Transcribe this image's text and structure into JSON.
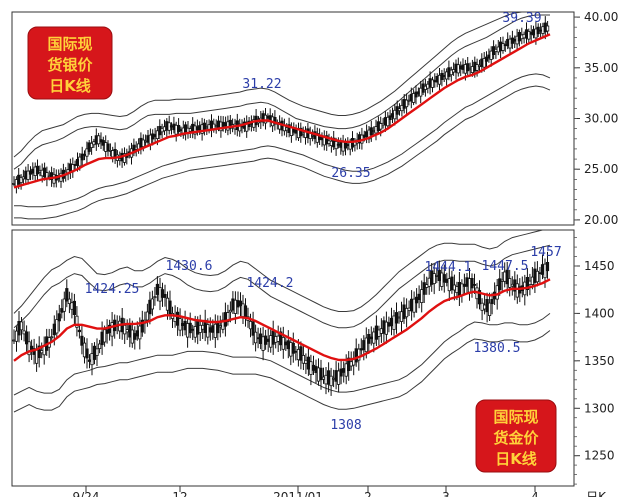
{
  "chart_data": [
    {
      "type": "candlestick",
      "badge": [
        "国际现",
        "货银价",
        "日K线"
      ],
      "y_ticks": [
        20.0,
        25.0,
        30.0,
        35.0,
        40.0
      ],
      "y_tick_labels": [
        "20.00",
        "25.00",
        "30.00",
        "35.00",
        "40.00"
      ],
      "ylim": [
        19.5,
        40.5
      ],
      "annotations": [
        {
          "label": "31.22",
          "value": 31.22
        },
        {
          "label": "26.35",
          "value": 26.35
        },
        {
          "label": "39.39",
          "value": 39.39
        }
      ],
      "series": [
        {
          "name": "",
          "values": [
            23.6,
            24.0,
            24.5,
            24.9,
            24.7,
            24.3,
            24.1,
            24.4,
            25.0,
            25.6,
            26.4,
            27.4,
            28.0,
            27.3,
            26.6,
            26.0,
            26.3,
            26.9,
            27.5,
            27.9,
            28.3,
            28.9,
            29.3,
            29.0,
            28.8,
            28.9,
            29.0,
            29.1,
            29.2,
            29.3,
            29.4,
            29.3,
            29.2,
            29.3,
            29.6,
            29.9,
            30.1,
            29.7,
            29.2,
            28.9,
            28.7,
            28.5,
            28.4,
            28.2,
            27.9,
            27.6,
            27.4,
            27.3,
            27.5,
            27.9,
            28.4,
            28.8,
            29.3,
            29.8,
            30.5,
            31.1,
            31.8,
            32.3,
            32.9,
            33.4,
            33.8,
            34.2,
            34.6,
            35.0,
            35.0,
            34.9,
            35.2,
            35.8,
            36.6,
            37.0,
            37.4,
            37.7,
            38.1,
            38.3,
            38.5,
            38.8,
            39.0
          ]
        },
        {
          "name": "",
          "values": [
            23.2,
            23.4,
            23.6,
            23.8,
            24.0,
            24.1,
            24.2,
            24.4,
            24.7,
            25.0,
            25.4,
            25.7,
            26.0,
            26.1,
            26.1,
            26.2,
            26.4,
            26.7,
            27.0,
            27.3,
            27.6,
            27.9,
            28.2,
            28.3,
            28.5,
            28.6,
            28.7,
            28.8,
            28.9,
            29.0,
            29.1,
            29.2,
            29.3,
            29.5,
            29.7,
            29.8,
            29.8,
            29.6,
            29.4,
            29.2,
            29.0,
            28.8,
            28.6,
            28.4,
            28.2,
            28.0,
            27.8,
            27.7,
            27.7,
            27.8,
            28.0,
            28.3,
            28.6,
            29.0,
            29.5,
            30.0,
            30.5,
            31.0,
            31.5,
            32.0,
            32.5,
            33.0,
            33.4,
            33.8,
            34.1,
            34.3,
            34.6,
            35.0,
            35.4,
            35.8,
            36.2,
            36.6,
            37.0,
            37.4,
            37.7,
            38.0,
            38.3
          ]
        },
        {
          "name": "",
          "values": [
            25.0,
            25.5,
            26.3,
            27.0,
            27.4,
            27.6,
            27.8,
            28.1,
            28.5,
            28.9,
            29.1,
            29.2,
            29.2,
            29.1,
            29.0,
            28.9,
            29.0,
            29.4,
            29.9,
            30.3,
            30.4,
            30.4,
            30.4,
            30.5,
            30.5,
            30.5,
            30.6,
            30.7,
            30.8,
            30.9,
            31.0,
            31.1,
            31.2,
            31.4,
            31.5,
            31.6,
            31.5,
            31.2,
            30.8,
            30.4,
            30.0,
            29.8,
            29.6,
            29.4,
            29.2,
            29.1,
            29.0,
            29.0,
            29.1,
            29.3,
            29.6,
            30.0,
            30.4,
            30.9,
            31.4,
            32.0,
            32.6,
            33.2,
            33.8,
            34.4,
            35.0,
            35.6,
            36.2,
            36.7,
            37.1,
            37.4,
            37.7,
            38.0,
            38.4,
            38.8,
            39.2,
            39.6,
            39.9,
            40.1,
            40.2,
            40.2,
            40.2
          ]
        },
        {
          "name": "",
          "values": [
            26.2,
            26.8,
            27.6,
            28.3,
            28.8,
            29.0,
            29.2,
            29.4,
            29.8,
            30.2,
            30.4,
            30.5,
            30.5,
            30.4,
            30.3,
            30.2,
            30.3,
            30.7,
            31.2,
            31.6,
            31.8,
            31.8,
            31.8,
            31.9,
            31.9,
            31.9,
            32.0,
            32.1,
            32.2,
            32.3,
            32.4,
            32.5,
            32.6,
            32.8,
            32.9,
            33.0,
            32.9,
            32.6,
            32.2,
            31.8,
            31.5,
            31.2,
            31.0,
            30.8,
            30.6,
            30.4,
            30.3,
            30.3,
            30.4,
            30.6,
            30.9,
            31.3,
            31.7,
            32.2,
            32.7,
            33.3,
            33.9,
            34.5,
            35.1,
            35.7,
            36.3,
            36.9,
            37.5,
            38.0,
            38.4,
            38.7,
            39.0,
            39.3,
            39.6,
            39.9,
            40.2,
            40.4,
            40.5,
            40.5,
            40.5,
            40.5,
            40.5
          ]
        },
        {
          "name": "",
          "values": [
            21.4,
            21.4,
            21.3,
            21.3,
            21.3,
            21.4,
            21.5,
            21.7,
            21.9,
            22.1,
            22.4,
            22.8,
            23.1,
            23.3,
            23.4,
            23.6,
            23.8,
            24.1,
            24.4,
            24.7,
            25.0,
            25.3,
            25.5,
            25.7,
            25.9,
            26.1,
            26.2,
            26.3,
            26.4,
            26.5,
            26.6,
            26.7,
            26.8,
            26.9,
            27.0,
            27.2,
            27.3,
            27.2,
            27.0,
            26.8,
            26.6,
            26.4,
            26.1,
            25.8,
            25.5,
            25.3,
            25.1,
            24.9,
            24.8,
            24.8,
            24.9,
            25.1,
            25.4,
            25.7,
            26.1,
            26.5,
            27.0,
            27.5,
            28.0,
            28.5,
            29.0,
            29.6,
            30.1,
            30.6,
            31.1,
            31.4,
            31.8,
            32.2,
            32.6,
            33.0,
            33.4,
            33.8,
            34.1,
            34.3,
            34.4,
            34.3,
            34.0
          ]
        },
        {
          "name": "",
          "values": [
            20.2,
            20.2,
            20.1,
            20.1,
            20.1,
            20.2,
            20.3,
            20.5,
            20.7,
            20.9,
            21.2,
            21.6,
            21.9,
            22.1,
            22.2,
            22.4,
            22.6,
            22.9,
            23.2,
            23.5,
            23.8,
            24.1,
            24.3,
            24.5,
            24.7,
            24.9,
            25.0,
            25.1,
            25.2,
            25.3,
            25.4,
            25.5,
            25.6,
            25.7,
            25.8,
            26.0,
            26.1,
            26.0,
            25.8,
            25.6,
            25.4,
            25.2,
            24.9,
            24.6,
            24.3,
            24.1,
            23.9,
            23.7,
            23.6,
            23.6,
            23.7,
            23.9,
            24.2,
            24.5,
            24.9,
            25.3,
            25.8,
            26.3,
            26.8,
            27.3,
            27.8,
            28.4,
            28.9,
            29.4,
            29.9,
            30.2,
            30.6,
            31.0,
            31.4,
            31.8,
            32.2,
            32.6,
            32.9,
            33.1,
            33.2,
            33.1,
            32.8
          ]
        }
      ]
    },
    {
      "type": "candlestick",
      "badge": [
        "国际现",
        "货金价",
        "日K线"
      ],
      "y_ticks": [
        1250,
        1300,
        1350,
        1400,
        1450
      ],
      "y_tick_labels": [
        "1250",
        "1300",
        "1350",
        "1400",
        "1450"
      ],
      "ylim": [
        1218,
        1488
      ],
      "x_labels": [
        "9/24",
        "12",
        "2011/01",
        "2",
        "3",
        "4"
      ],
      "axis_label": "日K",
      "annotations": [
        {
          "label": "1424.25",
          "value": 1424.25
        },
        {
          "label": "1430.6",
          "value": 1430.6
        },
        {
          "label": "1424.2",
          "value": 1424.2
        },
        {
          "label": "1444.1",
          "value": 1444.1
        },
        {
          "label": "1447.5",
          "value": 1447.5
        },
        {
          "label": "1457",
          "value": 1457
        },
        {
          "label": "1380.5",
          "value": 1380.5
        },
        {
          "label": "1308",
          "value": 1308
        }
      ],
      "series": [
        {
          "name": "",
          "values": [
            1372,
            1388,
            1365,
            1356,
            1362,
            1375,
            1395,
            1418,
            1404,
            1370,
            1350,
            1360,
            1378,
            1385,
            1388,
            1382,
            1375,
            1385,
            1405,
            1424,
            1418,
            1398,
            1390,
            1384,
            1382,
            1386,
            1382,
            1384,
            1392,
            1408,
            1410,
            1395,
            1376,
            1370,
            1372,
            1374,
            1368,
            1362,
            1356,
            1346,
            1340,
            1332,
            1330,
            1334,
            1342,
            1350,
            1362,
            1372,
            1378,
            1384,
            1390,
            1396,
            1402,
            1410,
            1420,
            1434,
            1440,
            1436,
            1430,
            1424,
            1432,
            1430,
            1408,
            1406,
            1424,
            1440,
            1430,
            1424,
            1430,
            1438,
            1445,
            1450
          ]
        },
        {
          "name": "",
          "values": [
            1350,
            1356,
            1360,
            1362,
            1366,
            1370,
            1376,
            1384,
            1388,
            1388,
            1386,
            1384,
            1384,
            1386,
            1388,
            1389,
            1389,
            1390,
            1392,
            1396,
            1398,
            1398,
            1397,
            1395,
            1393,
            1392,
            1391,
            1391,
            1392,
            1394,
            1396,
            1395,
            1392,
            1388,
            1384,
            1380,
            1376,
            1372,
            1368,
            1364,
            1360,
            1356,
            1353,
            1351,
            1351,
            1352,
            1355,
            1359,
            1363,
            1368,
            1373,
            1378,
            1383,
            1389,
            1395,
            1402,
            1408,
            1413,
            1416,
            1418,
            1421,
            1423,
            1421,
            1419,
            1420,
            1424,
            1426,
            1426,
            1427,
            1429,
            1432,
            1436
          ]
        },
        {
          "name": "",
          "values": [
            1385,
            1392,
            1400,
            1410,
            1420,
            1428,
            1432,
            1438,
            1442,
            1440,
            1432,
            1425,
            1424,
            1426,
            1430,
            1432,
            1428,
            1428,
            1432,
            1438,
            1442,
            1440,
            1436,
            1430,
            1426,
            1424,
            1423,
            1424,
            1428,
            1434,
            1438,
            1436,
            1430,
            1424,
            1418,
            1414,
            1410,
            1406,
            1402,
            1398,
            1394,
            1390,
            1387,
            1385,
            1385,
            1386,
            1390,
            1396,
            1402,
            1410,
            1418,
            1426,
            1432,
            1438,
            1444,
            1450,
            1454,
            1456,
            1456,
            1455,
            1455,
            1455,
            1452,
            1450,
            1452,
            1458,
            1462,
            1464,
            1466,
            1468,
            1470,
            1472
          ]
        },
        {
          "name": "",
          "values": [
            1400,
            1408,
            1418,
            1428,
            1438,
            1446,
            1450,
            1456,
            1460,
            1458,
            1450,
            1442,
            1441,
            1443,
            1447,
            1449,
            1445,
            1445,
            1449,
            1455,
            1459,
            1457,
            1453,
            1447,
            1443,
            1441,
            1440,
            1441,
            1445,
            1451,
            1455,
            1453,
            1447,
            1441,
            1435,
            1431,
            1427,
            1423,
            1419,
            1415,
            1411,
            1407,
            1404,
            1402,
            1402,
            1403,
            1407,
            1413,
            1420,
            1428,
            1436,
            1444,
            1450,
            1456,
            1462,
            1468,
            1472,
            1474,
            1474,
            1473,
            1473,
            1473,
            1470,
            1468,
            1470,
            1476,
            1480,
            1482,
            1484,
            1486,
            1488,
            1488
          ]
        },
        {
          "name": "",
          "values": [
            1314,
            1318,
            1322,
            1318,
            1316,
            1316,
            1320,
            1330,
            1336,
            1338,
            1340,
            1343,
            1344,
            1346,
            1348,
            1348,
            1350,
            1352,
            1354,
            1356,
            1356,
            1356,
            1358,
            1360,
            1360,
            1360,
            1359,
            1358,
            1356,
            1354,
            1354,
            1354,
            1354,
            1352,
            1350,
            1346,
            1342,
            1338,
            1334,
            1330,
            1326,
            1322,
            1319,
            1317,
            1317,
            1318,
            1320,
            1322,
            1324,
            1326,
            1328,
            1330,
            1334,
            1340,
            1346,
            1354,
            1362,
            1370,
            1376,
            1381,
            1387,
            1391,
            1390,
            1388,
            1388,
            1390,
            1390,
            1388,
            1388,
            1390,
            1394,
            1400
          ]
        },
        {
          "name": "",
          "values": [
            1296,
            1300,
            1304,
            1300,
            1298,
            1298,
            1302,
            1312,
            1318,
            1320,
            1322,
            1325,
            1326,
            1328,
            1330,
            1330,
            1332,
            1334,
            1336,
            1338,
            1338,
            1338,
            1340,
            1342,
            1342,
            1342,
            1341,
            1340,
            1338,
            1336,
            1336,
            1336,
            1336,
            1334,
            1332,
            1328,
            1324,
            1320,
            1316,
            1312,
            1308,
            1304,
            1301,
            1299,
            1299,
            1300,
            1302,
            1304,
            1306,
            1308,
            1310,
            1312,
            1316,
            1322,
            1328,
            1336,
            1344,
            1352,
            1358,
            1363,
            1369,
            1373,
            1372,
            1370,
            1370,
            1372,
            1372,
            1370,
            1370,
            1372,
            1376,
            1382
          ]
        }
      ]
    }
  ]
}
